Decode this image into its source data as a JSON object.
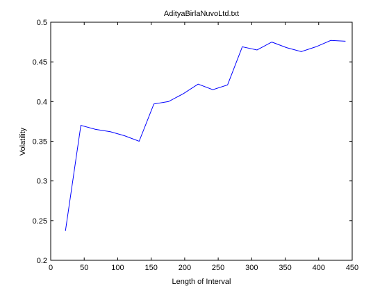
{
  "chart_data": {
    "type": "line",
    "title": "AdityaBirlaNuvoLtd.txt",
    "xlabel": "Length of Interval",
    "ylabel": "Volatility",
    "xlim": [
      0,
      450
    ],
    "ylim": [
      0.2,
      0.5
    ],
    "xticks": [
      0,
      50,
      100,
      150,
      200,
      250,
      300,
      350,
      400,
      450
    ],
    "yticks": [
      0.2,
      0.25,
      0.3,
      0.35,
      0.4,
      0.45,
      0.5
    ],
    "xtick_labels": [
      "0",
      "50",
      "100",
      "150",
      "200",
      "250",
      "300",
      "350",
      "400",
      "450"
    ],
    "ytick_labels": [
      "0.2",
      "0.25",
      "0.3",
      "0.35",
      "0.4",
      "0.45",
      "0.5"
    ],
    "grid": false,
    "series": [
      {
        "color": "#0000ff",
        "x": [
          22,
          45,
          67,
          89,
          110,
          132,
          154,
          176,
          198,
          220,
          242,
          264,
          286,
          308,
          330,
          352,
          374,
          396,
          418,
          440
        ],
        "y": [
          0.237,
          0.37,
          0.365,
          0.362,
          0.357,
          0.35,
          0.397,
          0.4,
          0.41,
          0.422,
          0.415,
          0.421,
          0.469,
          0.465,
          0.475,
          0.468,
          0.463,
          0.469,
          0.477,
          0.476
        ]
      }
    ]
  }
}
